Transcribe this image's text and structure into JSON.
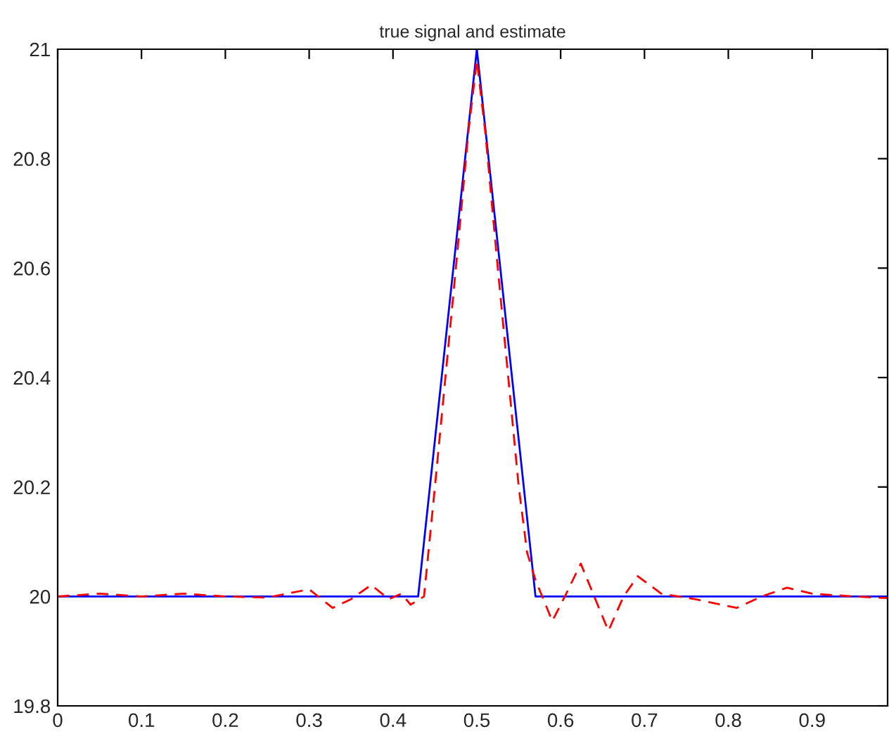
{
  "chart_data": {
    "type": "line",
    "title": "true signal and estimate",
    "xlim": [
      0,
      0.99
    ],
    "xticks": [
      0,
      0.1,
      0.2,
      0.3,
      0.4,
      0.5,
      0.6,
      0.7,
      0.8,
      0.9
    ],
    "ylim": [
      19.8,
      21
    ],
    "yticks": [
      19.8,
      20,
      20.2,
      20.4,
      20.6,
      20.8,
      21
    ],
    "grid": false,
    "series": [
      {
        "color": "#0000ff",
        "line_style": "solid",
        "x": [
          0,
          0.43,
          0.5,
          0.57,
          0.99
        ],
        "values": [
          20,
          20,
          21,
          20,
          20
        ]
      },
      {
        "color": "#ff0000",
        "line_style": "dashed",
        "x": [
          0,
          0.05,
          0.1,
          0.15,
          0.2,
          0.25,
          0.3,
          0.328,
          0.35,
          0.374,
          0.395,
          0.41,
          0.421,
          0.437,
          0.45,
          0.475,
          0.49,
          0.5,
          0.51,
          0.525,
          0.55,
          0.56,
          0.57,
          0.59,
          0.605,
          0.624,
          0.64,
          0.657,
          0.675,
          0.692,
          0.72,
          0.76,
          0.81,
          0.84,
          0.87,
          0.9,
          0.95,
          0.99
        ],
        "values": [
          20,
          20.005,
          20,
          20.005,
          20,
          19.998,
          20.013,
          19.979,
          19.995,
          20.021,
          19.995,
          20.005,
          19.985,
          20.0,
          20.2,
          20.6,
          20.85,
          20.98,
          20.85,
          20.6,
          20.2,
          20.08,
          20.03,
          19.955,
          20.0,
          20.06,
          20.0,
          19.937,
          20.0,
          20.037,
          20.005,
          19.995,
          19.979,
          20.0,
          20.016,
          20.005,
          20.0,
          19.997
        ]
      }
    ]
  }
}
